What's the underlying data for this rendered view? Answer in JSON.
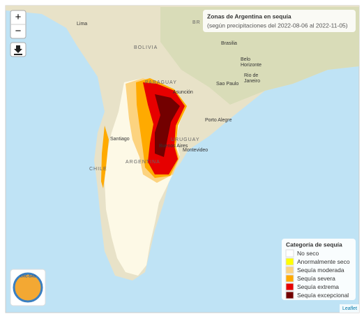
{
  "header": {
    "title": "Zonas de Argentina en sequía",
    "subtitle": "(según precipitaciones del 2022-08-06 al 2022-11-05)"
  },
  "controls": {
    "zoom_in": "+",
    "zoom_out": "−"
  },
  "places": [
    "Lima",
    "BOLIVIA",
    "BR",
    "Brasilia",
    "Belo",
    "Horizonte",
    "Rio de",
    "Janeiro",
    "Sao Paulo",
    "PARAGUAY",
    "Asunción",
    "Porto Alegre",
    "Santiago",
    "URUGUAY",
    "Buenos Aires",
    "Montevideo",
    "CHILE",
    "ARGENTINA"
  ],
  "legend": {
    "title": "Categoría de sequía",
    "items": [
      {
        "label": "No seco",
        "color": "#ffffff"
      },
      {
        "label": "Anormalmente seco",
        "color": "#ffff00"
      },
      {
        "label": "Sequía moderada",
        "color": "#fcd37f"
      },
      {
        "label": "Sequía severa",
        "color": "#ffaa00"
      },
      {
        "label": "Sequía extrema",
        "color": "#e60000"
      },
      {
        "label": "Sequía excepcional",
        "color": "#730000"
      }
    ]
  },
  "logo": "CRC-SAS",
  "attribution": "Leaflet"
}
